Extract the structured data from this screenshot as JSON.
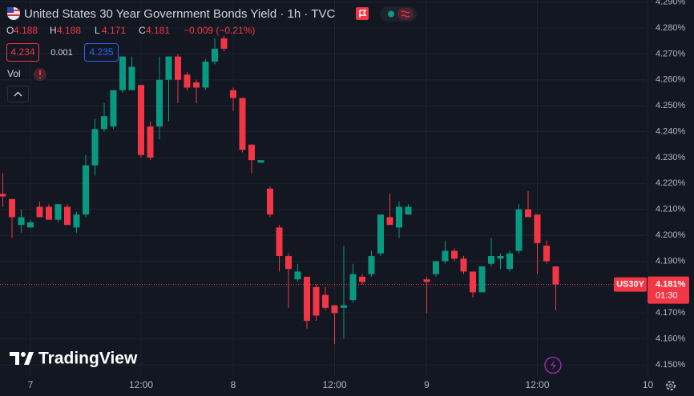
{
  "chart_data": {
    "type": "candlestick",
    "title": "United States 30 Year Government Bonds Yield · 1h · TVC",
    "ohlc_header": [
      [
        "O",
        "4.188"
      ],
      [
        "H",
        "4.188"
      ],
      [
        "L",
        "4.171"
      ],
      [
        "C",
        "4.181"
      ]
    ],
    "change": "−0.009 (−0.21%)",
    "quote_boxes": [
      "4.234",
      "0.001",
      "4.235"
    ],
    "volume_label": "Vol",
    "logo": "TradingView",
    "price_label": {
      "symbol": "US30Y",
      "value": "4.181%",
      "countdown": "01:30"
    },
    "up_color": "#089981",
    "down_color": "#f23645",
    "grid": true,
    "categories": [
      null,
      null,
      null,
      "7",
      null,
      null,
      null,
      null,
      null,
      null,
      null,
      null,
      null,
      null,
      null,
      "12:00",
      null,
      null,
      null,
      null,
      null,
      null,
      null,
      null,
      null,
      "8",
      null,
      null,
      null,
      null,
      null,
      null,
      null,
      null,
      null,
      null,
      "12:00",
      null,
      null,
      null,
      null,
      null,
      null,
      null,
      null,
      null,
      "9",
      null,
      null,
      null,
      null,
      null,
      null,
      null,
      null,
      null,
      null,
      null,
      "12:00",
      null,
      null,
      null,
      null,
      null,
      null,
      null,
      null,
      null,
      null,
      null,
      "10"
    ],
    "open": [
      4.216,
      4.214,
      4.204,
      4.203,
      4.211,
      4.211,
      4.206,
      4.211,
      4.203,
      4.208,
      4.227,
      4.241,
      4.242,
      4.256,
      4.256,
      4.258,
      4.242,
      4.242,
      4.26,
      4.269,
      4.262,
      4.259,
      4.257,
      4.267,
      4.276,
      4.256,
      4.253,
      4.235,
      4.228,
      4.218,
      4.203,
      4.192,
      4.183,
      4.184,
      4.18,
      4.177,
      4.173,
      4.172,
      4.175,
      4.184,
      4.185,
      4.193,
      4.207,
      4.203,
      4.208,
      null,
      4.183,
      4.185,
      4.19,
      4.194,
      4.191,
      4.186,
      4.178,
      4.189,
      4.191,
      4.187,
      4.194,
      4.21,
      4.208,
      4.196,
      4.188,
      null,
      null,
      null,
      null,
      null,
      null,
      null,
      null,
      null,
      null
    ],
    "high": [
      4.224,
      4.214,
      4.21,
      4.206,
      4.213,
      4.212,
      4.212,
      4.212,
      4.209,
      4.231,
      4.245,
      4.251,
      4.256,
      4.269,
      4.269,
      4.258,
      4.244,
      4.269,
      4.269,
      4.27,
      4.263,
      4.26,
      4.268,
      4.276,
      4.277,
      4.257,
      4.253,
      4.235,
      4.229,
      4.219,
      4.204,
      4.193,
      4.189,
      4.184,
      4.181,
      4.18,
      4.173,
      4.196,
      4.189,
      4.185,
      4.194,
      4.208,
      4.216,
      4.213,
      4.212,
      null,
      4.184,
      4.19,
      4.198,
      4.195,
      4.192,
      4.186,
      4.188,
      4.199,
      4.193,
      4.194,
      4.212,
      4.217,
      4.208,
      4.198,
      4.188,
      null,
      null,
      null,
      null,
      null,
      null,
      null,
      null,
      null,
      null
    ],
    "low": [
      4.211,
      4.199,
      4.201,
      4.203,
      4.207,
      4.206,
      4.205,
      4.204,
      4.201,
      4.207,
      4.223,
      4.24,
      4.241,
      4.255,
      4.256,
      4.23,
      4.229,
      4.237,
      4.244,
      4.251,
      4.256,
      4.251,
      4.256,
      4.266,
      4.271,
      4.248,
      4.232,
      4.224,
      4.228,
      4.207,
      4.186,
      4.172,
      4.182,
      4.164,
      4.167,
      4.171,
      4.158,
      4.16,
      4.174,
      4.181,
      4.184,
      4.192,
      4.204,
      4.199,
      4.208,
      null,
      4.17,
      4.184,
      4.189,
      4.19,
      4.185,
      4.176,
      4.178,
      4.188,
      4.187,
      4.186,
      4.193,
      4.207,
      4.185,
      4.189,
      4.171,
      null,
      null,
      null,
      null,
      null,
      null,
      null,
      null,
      null,
      null
    ],
    "close": [
      4.215,
      4.207,
      4.207,
      4.205,
      4.207,
      4.206,
      4.212,
      4.204,
      4.208,
      4.227,
      4.241,
      4.246,
      4.256,
      4.269,
      4.265,
      4.231,
      4.23,
      4.26,
      4.269,
      4.26,
      4.257,
      4.257,
      4.267,
      4.272,
      4.272,
      4.253,
      4.233,
      4.229,
      4.229,
      4.208,
      4.192,
      4.187,
      4.186,
      4.167,
      4.169,
      4.172,
      4.17,
      4.173,
      4.185,
      4.182,
      4.192,
      4.208,
      4.204,
      4.211,
      4.211,
      null,
      4.182,
      4.19,
      4.194,
      4.191,
      4.186,
      4.178,
      4.188,
      4.192,
      4.192,
      4.193,
      4.21,
      4.207,
      4.197,
      4.19,
      4.181,
      null,
      null,
      null,
      null,
      null,
      null,
      null,
      null,
      null,
      null
    ],
    "ylim": [
      4.1457,
      4.2908
    ],
    "yticks": [
      {
        "value": 4.15,
        "label": "4.150%"
      },
      {
        "value": 4.16,
        "label": "4.160%"
      },
      {
        "value": 4.17,
        "label": "4.170%"
      },
      {
        "value": 4.18,
        "label": "4.180%"
      },
      {
        "value": 4.19,
        "label": "4.190%"
      },
      {
        "value": 4.2,
        "label": "4.200%"
      },
      {
        "value": 4.21,
        "label": "4.210%"
      },
      {
        "value": 4.22,
        "label": "4.220%"
      },
      {
        "value": 4.23,
        "label": "4.230%"
      },
      {
        "value": 4.24,
        "label": "4.240%"
      },
      {
        "value": 4.25,
        "label": "4.250%"
      },
      {
        "value": 4.26,
        "label": "4.260%"
      },
      {
        "value": 4.27,
        "label": "4.270%"
      },
      {
        "value": 4.28,
        "label": "4.280%"
      },
      {
        "value": 4.29,
        "label": "4.290%"
      }
    ]
  }
}
